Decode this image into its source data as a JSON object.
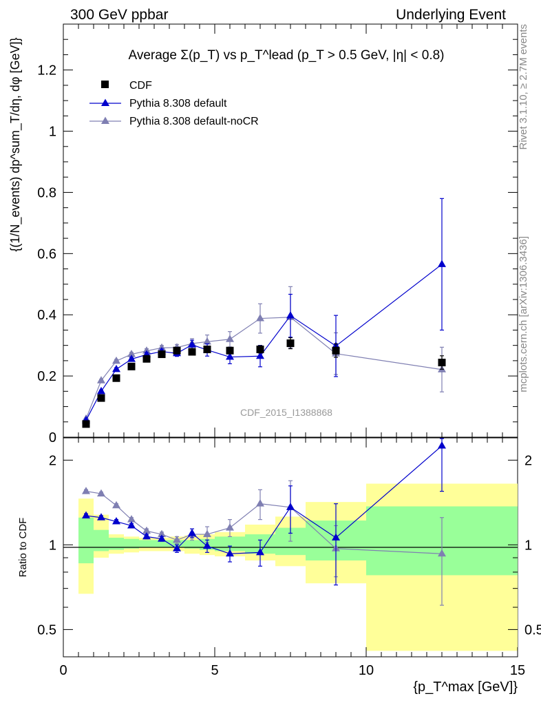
{
  "header": {
    "energy_label": "300 GeV ppbar",
    "process_label": "Underlying Event"
  },
  "side_labels": {
    "rivet": "Rivet 3.1.10, ≥ 2.7M events",
    "mcplots": "mcplots.cern.ch [arXiv:1306.3436]"
  },
  "watermark": "CDF_2015_I1388868",
  "colors": {
    "cdf": "#000000",
    "default": "#0000cc",
    "noCR": "#7f7fb2",
    "band_inner": "#99ff99",
    "band_outer": "#ffff99"
  },
  "chart_data": [
    {
      "type": "scatter",
      "title": "Average Σ(p_T) vs p_T^lead (p_T > 0.5 GeV, |η| < 0.8)",
      "ylabel": "{(1/N_events) dp^sum_T/dη, dφ [GeV]}",
      "xlim": [
        0,
        15
      ],
      "ylim": [
        0,
        1.35
      ],
      "yticks": [
        "0",
        "0.2",
        "0.4",
        "0.6",
        "0.8",
        "1",
        "1.2"
      ],
      "legend_position": "top-left",
      "x": [
        0.75,
        1.25,
        1.75,
        2.25,
        2.75,
        3.25,
        3.75,
        4.25,
        4.75,
        5.5,
        6.5,
        7.5,
        9.0,
        12.5
      ],
      "xerr": [
        0.25,
        0.25,
        0.25,
        0.25,
        0.25,
        0.25,
        0.25,
        0.25,
        0.25,
        0.5,
        0.5,
        0.5,
        1.0,
        2.5
      ],
      "series": [
        {
          "name": "CDF",
          "marker": "square",
          "values": [
            0.043,
            0.128,
            0.193,
            0.231,
            0.256,
            0.271,
            0.283,
            0.279,
            0.287,
            0.283,
            0.287,
            0.307,
            0.283,
            0.244
          ],
          "errors": [
            0.003,
            0.005,
            0.006,
            0.007,
            0.008,
            0.008,
            0.009,
            0.009,
            0.01,
            0.01,
            0.012,
            0.018,
            0.022,
            0.022
          ]
        },
        {
          "name": "Pythia 8.308 default",
          "marker": "triangle",
          "values": [
            0.055,
            0.15,
            0.222,
            0.255,
            0.27,
            0.28,
            0.274,
            0.302,
            0.285,
            0.262,
            0.265,
            0.397,
            0.298,
            0.565
          ],
          "errors": [
            0.003,
            0.004,
            0.005,
            0.006,
            0.007,
            0.008,
            0.01,
            0.015,
            0.02,
            0.022,
            0.035,
            0.07,
            0.1,
            0.215
          ]
        },
        {
          "name": "Pythia 8.308 default-noCR",
          "marker": "triangle",
          "values": [
            0.06,
            0.185,
            0.249,
            0.271,
            0.282,
            0.292,
            0.293,
            0.306,
            0.312,
            0.32,
            0.388,
            0.392,
            0.273,
            0.221
          ],
          "errors": [
            0.003,
            0.004,
            0.005,
            0.006,
            0.007,
            0.008,
            0.01,
            0.016,
            0.022,
            0.025,
            0.048,
            0.1,
            0.068,
            0.073
          ]
        }
      ]
    },
    {
      "type": "scatter",
      "ylabel": "Ratio to CDF",
      "xlabel": "{p_T^max [GeV]}",
      "xlim": [
        0,
        15
      ],
      "xticks": [
        "0",
        "5",
        "10",
        "15"
      ],
      "yscale": "log",
      "ylim": [
        0.4,
        2.4
      ],
      "yticks": [
        "0.5",
        "1",
        "2"
      ],
      "bands": {
        "bins": [
          [
            0.5,
            1.0
          ],
          [
            1.0,
            1.5
          ],
          [
            1.5,
            2.0
          ],
          [
            2.0,
            2.5
          ],
          [
            2.5,
            3.0
          ],
          [
            3.0,
            3.5
          ],
          [
            3.5,
            4.0
          ],
          [
            4.0,
            4.5
          ],
          [
            4.5,
            5.0
          ],
          [
            5.0,
            6.0
          ],
          [
            6.0,
            7.0
          ],
          [
            7.0,
            8.0
          ],
          [
            8.0,
            10.0
          ],
          [
            10.0,
            15.0
          ]
        ],
        "inner": [
          [
            0.86,
            1.25
          ],
          [
            0.95,
            1.13
          ],
          [
            0.96,
            1.06
          ],
          [
            0.97,
            1.05
          ],
          [
            0.98,
            1.04
          ],
          [
            0.98,
            1.04
          ],
          [
            0.98,
            1.04
          ],
          [
            0.97,
            1.04
          ],
          [
            0.96,
            1.05
          ],
          [
            0.95,
            1.07
          ],
          [
            0.93,
            1.09
          ],
          [
            0.92,
            1.15
          ],
          [
            0.88,
            1.22
          ],
          [
            0.78,
            1.37
          ]
        ],
        "outer": [
          [
            0.67,
            1.46
          ],
          [
            0.9,
            1.28
          ],
          [
            0.93,
            1.09
          ],
          [
            0.94,
            1.07
          ],
          [
            0.95,
            1.06
          ],
          [
            0.95,
            1.06
          ],
          [
            0.95,
            1.07
          ],
          [
            0.93,
            1.08
          ],
          [
            0.92,
            1.09
          ],
          [
            0.91,
            1.11
          ],
          [
            0.88,
            1.18
          ],
          [
            0.84,
            1.26
          ],
          [
            0.73,
            1.42
          ],
          [
            0.42,
            1.65
          ]
        ]
      },
      "series": [
        {
          "name": "Pythia 8.308 default",
          "values": [
            1.27,
            1.25,
            1.21,
            1.17,
            1.07,
            1.05,
            0.97,
            1.1,
            0.99,
            0.93,
            0.94,
            1.36,
            1.06,
            2.25
          ],
          "errors": [
            0.02,
            0.02,
            0.02,
            0.02,
            0.02,
            0.02,
            0.03,
            0.04,
            0.05,
            0.06,
            0.1,
            0.26,
            0.34,
            0.7
          ]
        },
        {
          "name": "Pythia 8.308 default-noCR",
          "values": [
            1.55,
            1.52,
            1.38,
            1.23,
            1.12,
            1.09,
            1.04,
            1.09,
            1.09,
            1.15,
            1.4,
            1.36,
            0.97,
            0.93
          ],
          "errors": [
            0.02,
            0.02,
            0.02,
            0.02,
            0.02,
            0.02,
            0.03,
            0.05,
            0.07,
            0.08,
            0.17,
            0.33,
            0.2,
            0.32
          ]
        }
      ]
    }
  ]
}
